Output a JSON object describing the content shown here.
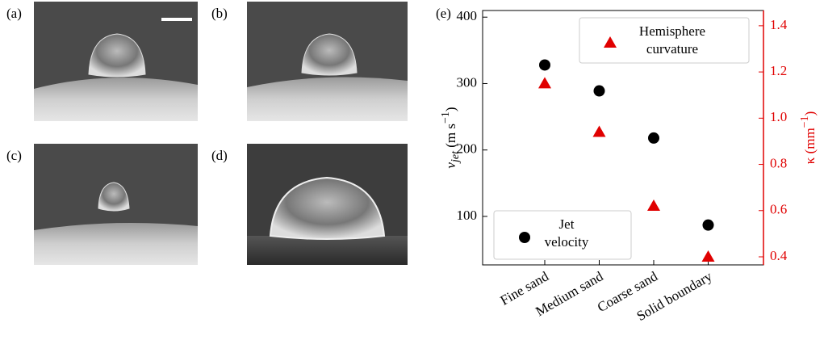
{
  "panels": [
    "(a)",
    "(b)",
    "(c)",
    "(d)"
  ],
  "chart_data": {
    "type": "scatter",
    "label": "(e)",
    "categories": [
      "Fine sand",
      "Medium sand",
      "Coarse sand",
      "Solid boundary"
    ],
    "ylabel": [
      "v",
      "jet",
      " (m s",
      "−1",
      ")"
    ],
    "y2label": [
      "κ (mm",
      "−1",
      ")"
    ],
    "ylim": [
      27,
      410
    ],
    "yticks": [
      100,
      200,
      300,
      400
    ],
    "y2lim": [
      0.365,
      1.466
    ],
    "y2ticks": [
      0.4,
      0.6,
      0.8,
      {
        "value": 1,
        "label": "1.0"
      },
      1.2,
      1.4
    ],
    "series": [
      {
        "name": "Jet velocity",
        "color": "#000000",
        "marker": "circle",
        "values": [
          328,
          289,
          218,
          87
        ],
        "legend": "lower left"
      },
      {
        "name": "Hemisphere curvature",
        "color": "#e00000",
        "marker": "triangle",
        "axis": "y2",
        "values": [
          1.15,
          0.94,
          0.62,
          0.4
        ],
        "legend": "upper right"
      }
    ]
  }
}
